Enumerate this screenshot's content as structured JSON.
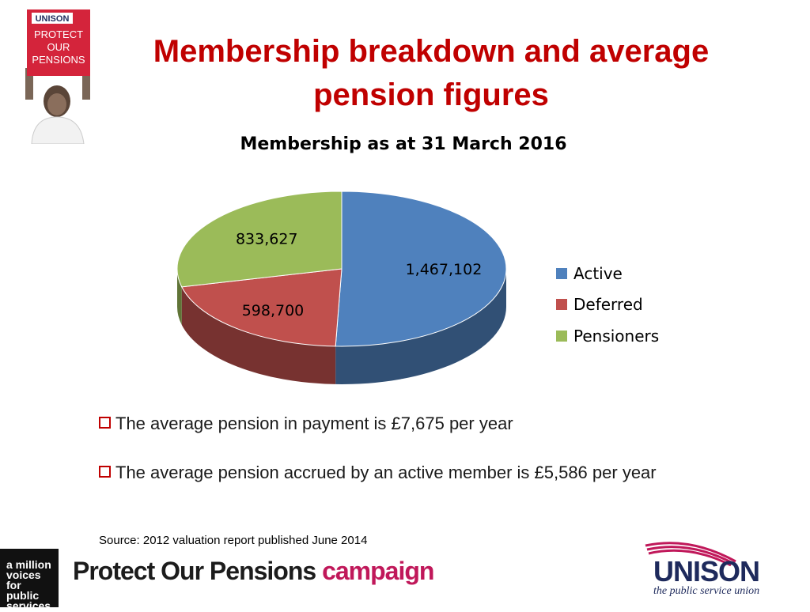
{
  "placard": {
    "brand": "UNISON",
    "lines": [
      "PROTECT",
      "OUR",
      "PENSIONS"
    ]
  },
  "title": {
    "line1": "Membership breakdown and average",
    "line2": "pension figures"
  },
  "chart_data": {
    "type": "pie",
    "title": "Membership as at 31 March 2016",
    "slices": [
      {
        "label": "Active",
        "value": 1467102,
        "display": "1,467,102",
        "color": "#4f81bd"
      },
      {
        "label": "Deferred",
        "value": 598700,
        "display": "598,700",
        "color": "#c0504d"
      },
      {
        "label": "Pensioners",
        "value": 833627,
        "display": "833,627",
        "color": "#9bbb59"
      }
    ],
    "legend": "right",
    "style": "3d"
  },
  "bullets": [
    "The average pension in payment is £7,675 per year",
    "The average pension accrued by an active member is £5,586 per year"
  ],
  "source": "Source: 2012 valuation report published June 2014",
  "footer": {
    "million_lines": [
      "a million",
      "voices",
      "for",
      "public",
      "services"
    ],
    "campaign_black": "Protect Our Pensions",
    "campaign_pink": "campaign",
    "unison_name": "UNISON",
    "unison_tagline": "the public service union"
  }
}
